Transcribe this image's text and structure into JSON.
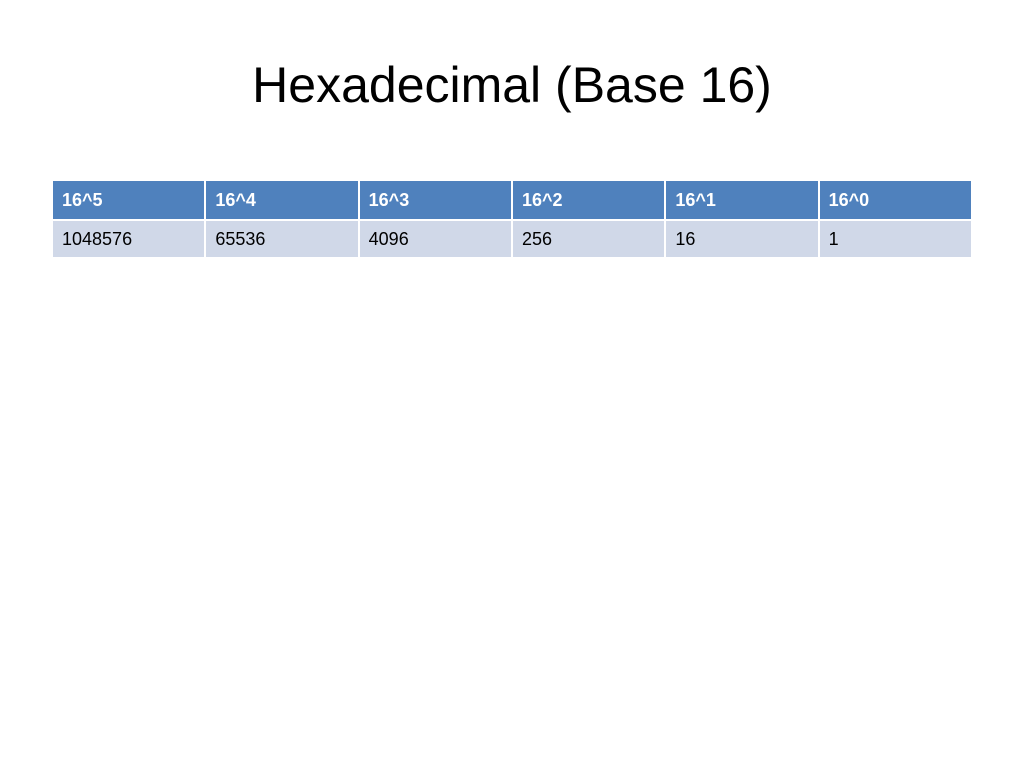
{
  "title": "Hexadecimal (Base 16)",
  "table": {
    "header": [
      "16^5",
      "16^4",
      "16^3",
      "16^2",
      "16^1",
      "16^0"
    ],
    "rows": [
      [
        1048576,
        65536,
        4096,
        256,
        16,
        1
      ]
    ]
  }
}
